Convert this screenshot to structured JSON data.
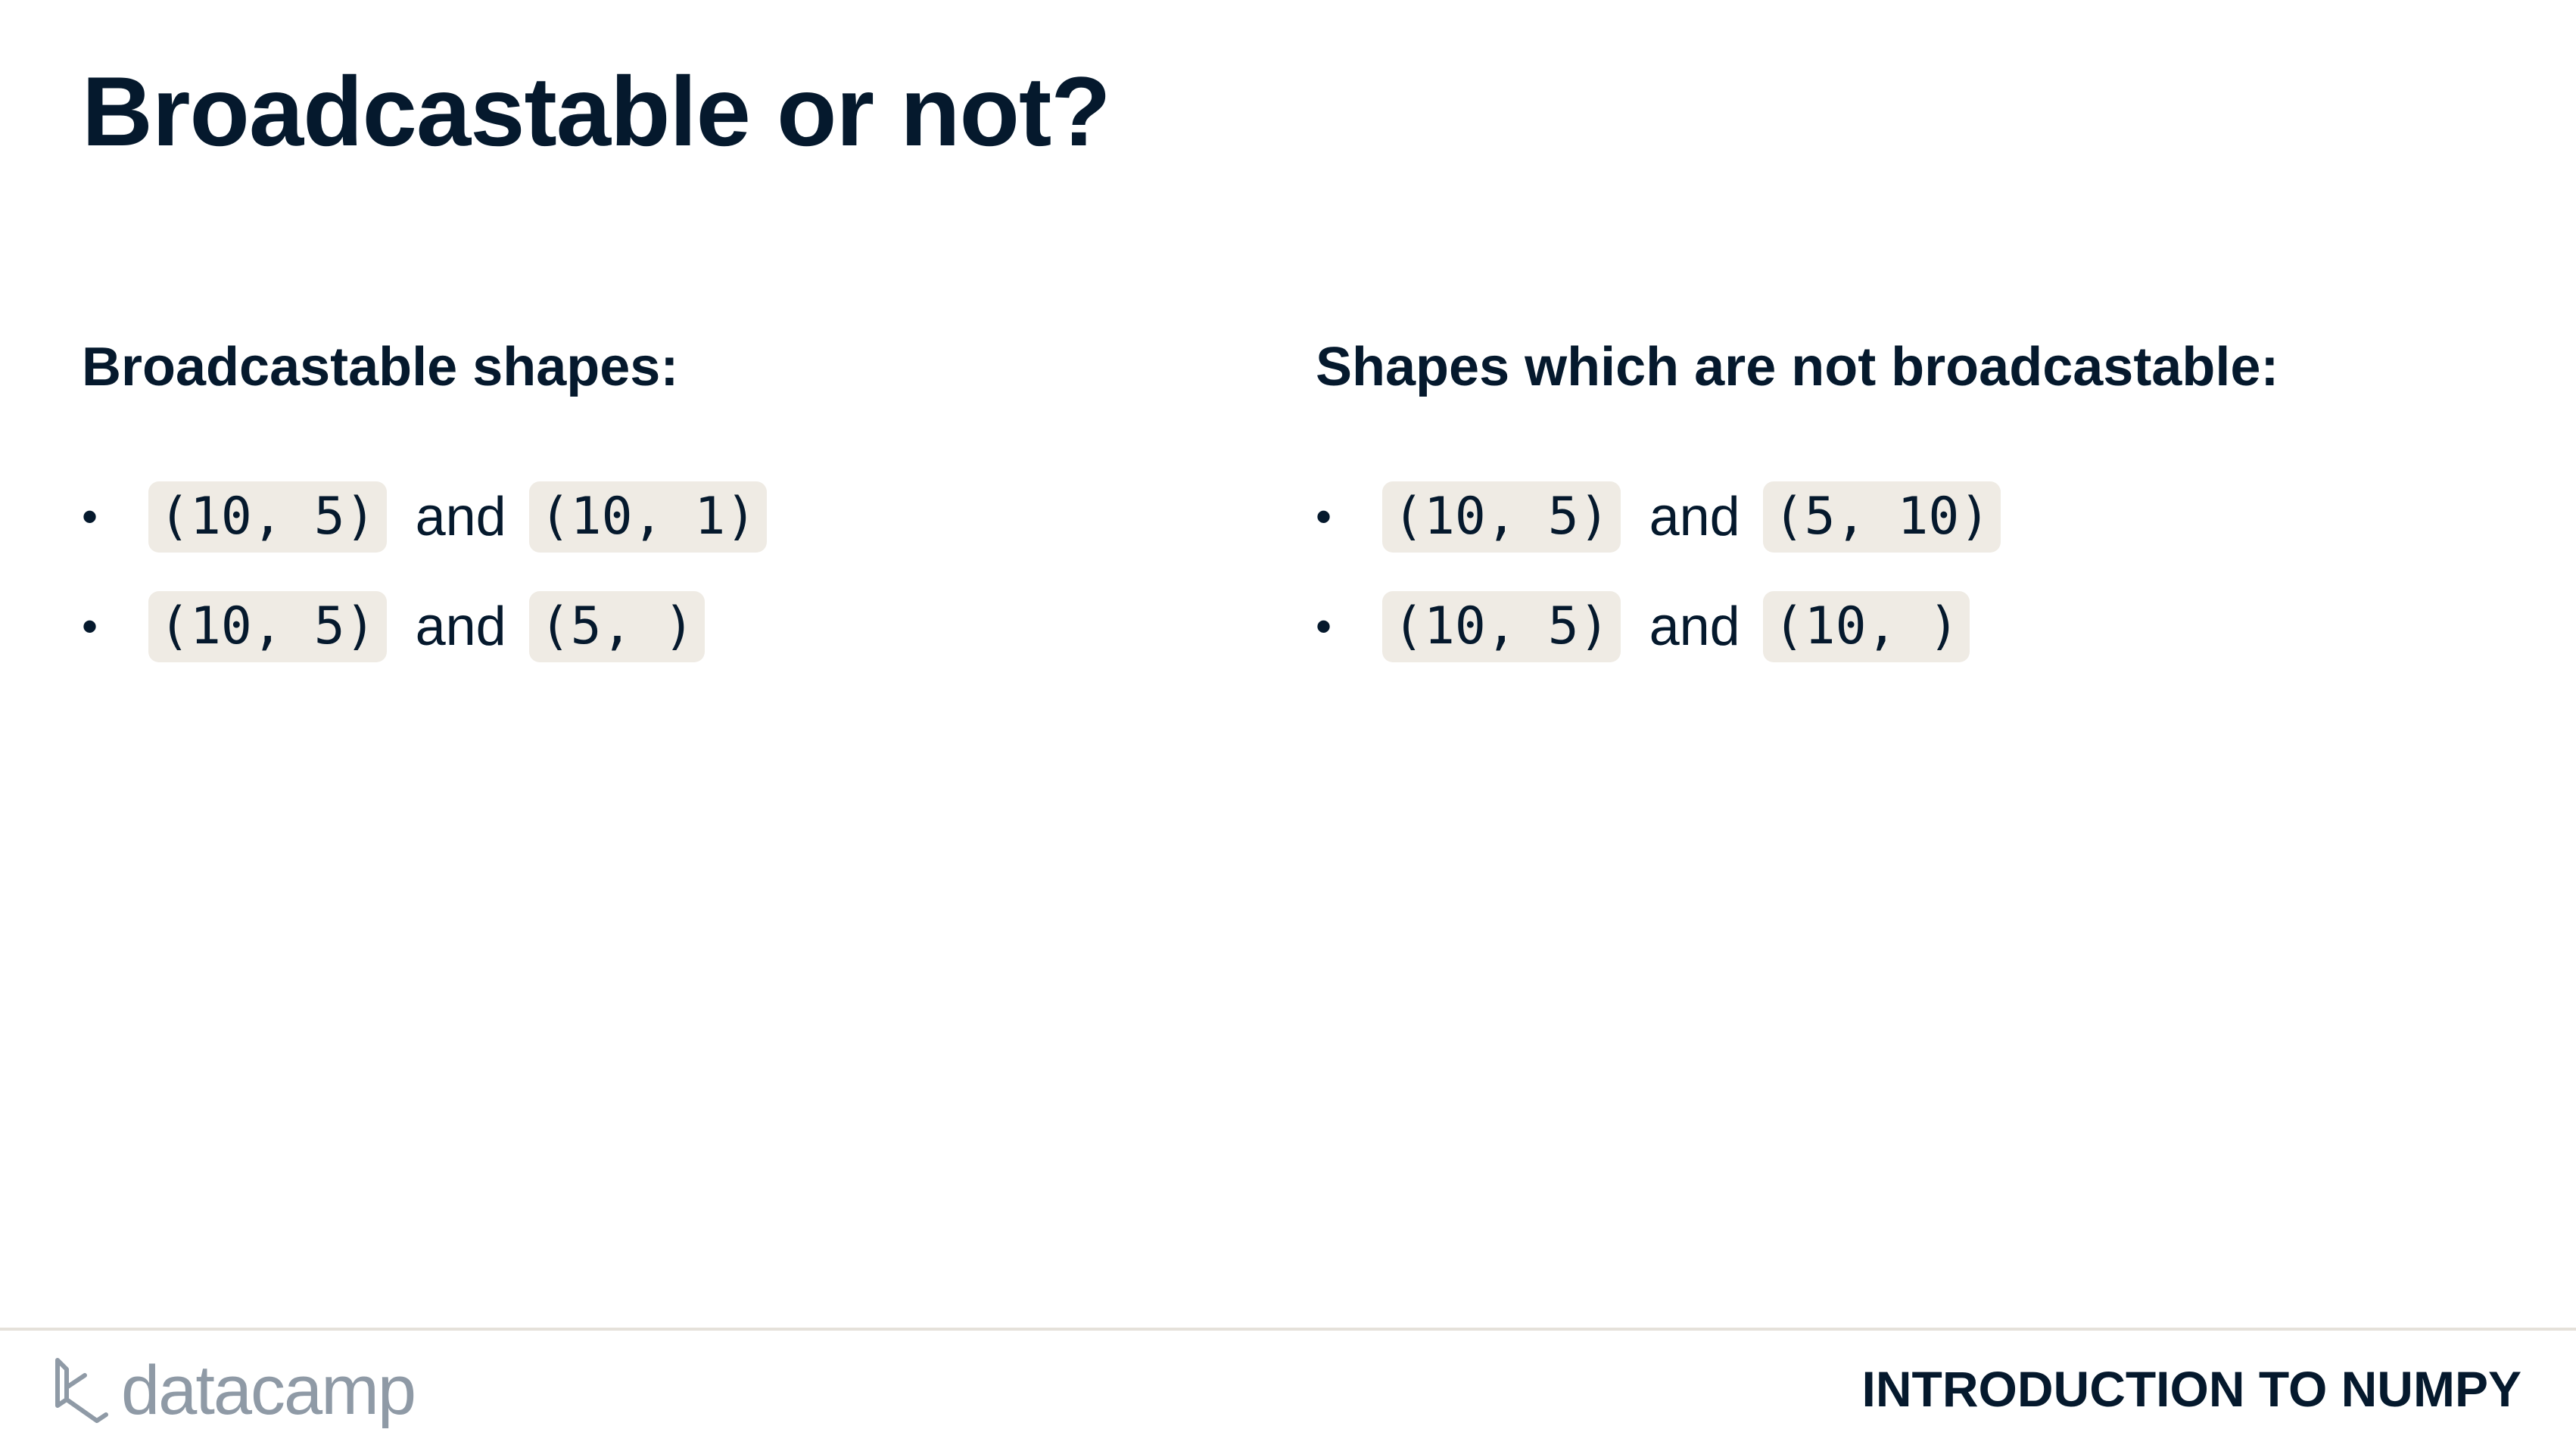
{
  "title": "Broadcastable or not?",
  "left_column": {
    "heading": "Broadcastable shapes:",
    "items": [
      {
        "first": "(10, 5)",
        "connector": "and",
        "second": "(10, 1)"
      },
      {
        "first": "(10, 5)",
        "connector": "and",
        "second": "(5, )"
      }
    ]
  },
  "right_column": {
    "heading": "Shapes which are not broadcastable:",
    "items": [
      {
        "first": "(10, 5)",
        "connector": "and",
        "second": "(5, 10)"
      },
      {
        "first": "(10, 5)",
        "connector": "and",
        "second": "(10, )"
      }
    ]
  },
  "footer": {
    "logo_text": "datacamp",
    "logo_icon": "datacamp-logo-icon",
    "course_name": "INTRODUCTION TO NUMPY"
  },
  "colors": {
    "text": "#05192d",
    "code_background": "#efebe4",
    "logo_gray": "#8f9aa6",
    "divider": "#e5e1da"
  }
}
